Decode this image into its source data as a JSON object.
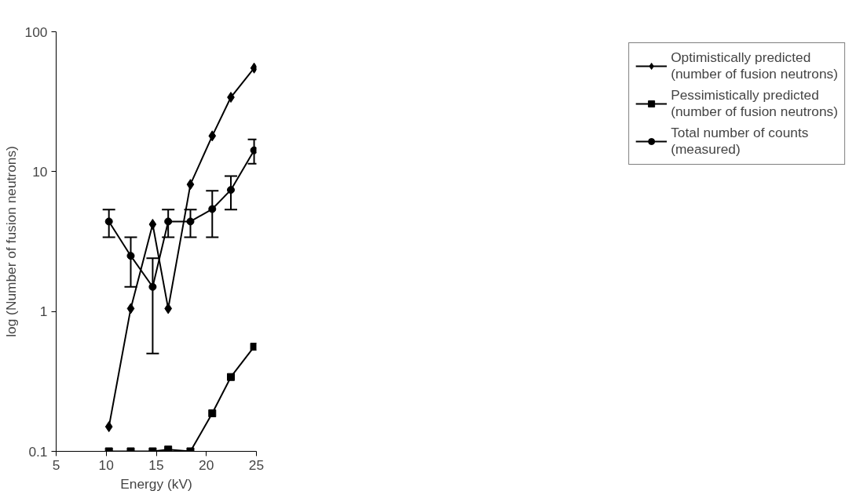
{
  "chart_data": {
    "type": "line",
    "xlabel": "Energy (kV)",
    "ylabel": "log (Number of fusion neutrons)",
    "x": [
      10.27,
      12.45,
      14.64,
      16.19,
      18.41,
      20.59,
      22.45,
      24.77
    ],
    "series": [
      {
        "name": "Optimistically predicted (number of fusion neutrons)",
        "color": "#000000",
        "marker": "diamond",
        "values": [
          0.15,
          1.05,
          4.2,
          1.05,
          8.1,
          18,
          34,
          55
        ]
      },
      {
        "name": "Pessimistically predicted (number of fusion neutrons)",
        "color": "#000000",
        "marker": "square",
        "values": [
          0.1,
          0.1,
          0.1,
          0.103,
          0.1,
          0.187,
          0.34,
          0.56
        ]
      },
      {
        "name": "Total number of counts (measured)",
        "color": "#000000",
        "marker": "circle",
        "values": [
          4.4,
          2.5,
          1.5,
          4.4,
          4.4,
          5.4,
          7.4,
          14.2
        ],
        "errors": [
          [
            3.4,
            5.35
          ],
          [
            1.5,
            3.4
          ],
          [
            0.5,
            2.4
          ],
          [
            3.4,
            5.35
          ],
          [
            3.4,
            5.35
          ],
          [
            3.4,
            7.3
          ],
          [
            5.35,
            9.3
          ],
          [
            11.4,
            17
          ]
        ]
      }
    ],
    "xlim": [
      5,
      25
    ],
    "xticks": [
      5,
      10,
      15,
      20,
      25
    ],
    "ylim": [
      0.1,
      100
    ],
    "yticks": [
      0.1,
      1,
      10,
      100
    ],
    "log": "y",
    "grid": false,
    "legend": "right",
    "line_style": "solid"
  }
}
